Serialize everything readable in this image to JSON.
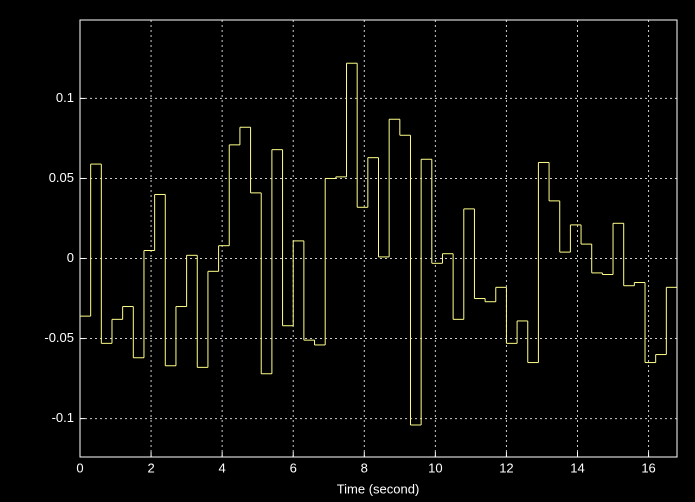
{
  "chart_data": {
    "type": "line",
    "step": "post",
    "xlabel": "Time (second)",
    "x": [
      0,
      0.3,
      0.6,
      0.9,
      1.2,
      1.5,
      1.8,
      2.1,
      2.4,
      2.7,
      3,
      3.3,
      3.6,
      3.9,
      4.2,
      4.5,
      4.8,
      5.1,
      5.4,
      5.7,
      6,
      6.3,
      6.6,
      6.9,
      7.2,
      7.5,
      7.8,
      8.1,
      8.4,
      8.7,
      9,
      9.3,
      9.6,
      9.9,
      10.2,
      10.5,
      10.8,
      11.1,
      11.4,
      11.7,
      12,
      12.3,
      12.6,
      12.9,
      13.2,
      13.5,
      13.8,
      14.1,
      14.4,
      14.7,
      15,
      15.3,
      15.6,
      15.9,
      16.2,
      16.5
    ],
    "series": [
      {
        "color": "#ffff88",
        "values": [
          -0.036,
          0.059,
          -0.053,
          -0.038,
          -0.03,
          -0.062,
          0.005,
          0.04,
          -0.067,
          -0.03,
          0.002,
          -0.068,
          -0.008,
          0.008,
          0.071,
          0.082,
          0.041,
          -0.072,
          0.068,
          -0.042,
          0.011,
          -0.051,
          -0.054,
          0.05,
          0.051,
          0.122,
          0.032,
          0.063,
          0.001,
          0.087,
          0.077,
          -0.104,
          0.062,
          -0.003,
          0.003,
          -0.038,
          0.031,
          -0.025,
          -0.027,
          -0.018,
          -0.053,
          -0.039,
          -0.065,
          0.06,
          0.036,
          0.004,
          0.021,
          0.009,
          -0.009,
          -0.01,
          0.022,
          -0.017,
          -0.015,
          -0.065,
          -0.06,
          -0.018
        ]
      }
    ],
    "xlim": [
      0,
      16.8
    ],
    "ylim": [
      -0.124,
      0.149
    ],
    "xticks": [
      0,
      2,
      4,
      6,
      8,
      10,
      12,
      14,
      16
    ],
    "yticks": [
      -0.1,
      -0.05,
      0,
      0.05,
      0.1
    ],
    "grid": true
  }
}
